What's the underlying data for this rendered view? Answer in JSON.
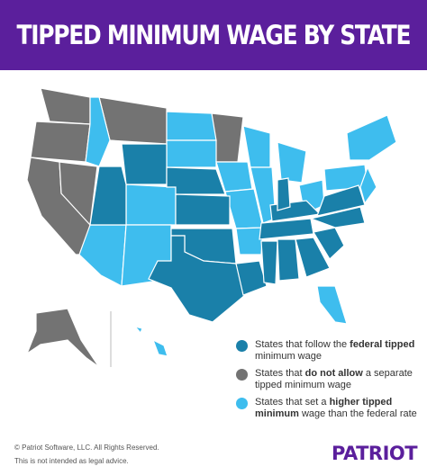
{
  "header": {
    "title": "TIPPED MINIMUM WAGE BY STATE",
    "background": "#5b1f9c"
  },
  "legend": [
    {
      "color": "#1a80a9",
      "parts": [
        "States that follow the ",
        "federal tipped",
        " minimum wage"
      ]
    },
    {
      "color": "#737373",
      "parts": [
        "States that ",
        "do not allow",
        " a separate tipped minimum wage"
      ]
    },
    {
      "color": "#3ebdee",
      "parts": [
        "States that set a ",
        "higher tipped minimum",
        " wage than the federal rate"
      ]
    }
  ],
  "footer": {
    "copyright": "© Patriot Software, LLC. All Rights Reserved.",
    "disclaimer": "This is not intended as legal advice.",
    "logo": "PATRIOT"
  }
}
